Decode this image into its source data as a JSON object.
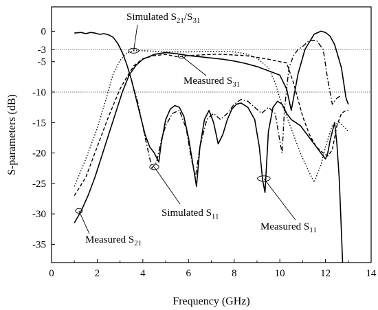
{
  "chart_data": {
    "type": "line",
    "xlabel": "Frequency (GHz)",
    "ylabel": "S-parameters (dB)",
    "xlim": [
      0,
      14
    ],
    "ylim": [
      -38,
      4
    ],
    "grid": false,
    "xticks": [
      0,
      2,
      4,
      6,
      8,
      10,
      12,
      14
    ],
    "yticks": [
      0,
      -3,
      -5,
      -10,
      -15,
      -20,
      -25,
      -30,
      -35
    ],
    "reference_lines": [
      -3,
      -10
    ],
    "series": [
      {
        "name": "Measured S21",
        "style": "solid",
        "x": [
          1.0,
          1.3,
          1.6,
          1.9,
          2.2,
          2.5,
          2.8,
          3.1,
          3.4,
          3.7,
          4.0,
          4.5,
          5.0,
          5.5,
          6.0,
          6.5,
          7.0,
          7.5,
          8.0,
          8.5,
          9.0,
          9.5,
          10.0,
          10.3,
          10.5,
          10.8,
          11.1,
          11.5,
          11.8,
          12.0,
          12.2,
          12.4,
          12.7,
          12.9,
          13.0
        ],
        "y": [
          -31.5,
          -29.5,
          -27,
          -24,
          -20.5,
          -17,
          -13.5,
          -10,
          -7.2,
          -5.6,
          -4.6,
          -3.8,
          -3.5,
          -3.7,
          -4.0,
          -4.2,
          -4.4,
          -4.6,
          -4.9,
          -5.3,
          -5.8,
          -6.5,
          -7.2,
          -9.5,
          -13.0,
          -7.0,
          -3.0,
          -0.5,
          0.0,
          -0.2,
          -0.8,
          -2.2,
          -6,
          -11,
          -12
        ]
      },
      {
        "name": "Measured S31",
        "style": "dashed",
        "x": [
          1.0,
          1.5,
          2.0,
          2.5,
          3.0,
          3.3,
          3.6,
          4.0,
          4.5,
          5.0,
          5.5,
          6.0,
          6.5,
          7.0,
          7.5,
          8.0,
          8.5,
          9.0,
          9.5,
          10.0,
          10.3,
          10.6,
          11.0,
          11.3,
          11.6,
          11.9,
          12.1,
          12.3,
          12.5,
          12.7,
          12.9,
          13.0
        ],
        "y": [
          -27.0,
          -24,
          -19,
          -14,
          -9.5,
          -7.5,
          -5.7,
          -4.5,
          -4.0,
          -3.8,
          -4.2,
          -4.0,
          -3.9,
          -3.8,
          -3.8,
          -3.9,
          -4.0,
          -4.3,
          -4.6,
          -5.0,
          -5.2,
          -8.5,
          -14.0,
          -17.0,
          -19.0,
          -20.0,
          -20.5,
          -19.5,
          -15.5,
          -13.5,
          -13.0,
          -13.0
        ]
      },
      {
        "name": "Simulated S21/S31",
        "style": "dotted",
        "x": [
          1.0,
          1.5,
          2.0,
          2.4,
          2.7,
          3.0,
          3.3,
          3.6,
          4.0,
          4.5,
          5.0,
          6.0,
          7.0,
          8.0,
          8.5,
          9.0,
          9.5,
          9.8,
          10.0,
          10.3,
          10.6,
          10.9,
          11.2,
          11.5,
          11.8,
          12.0,
          12.3,
          12.6,
          12.9,
          13.0
        ],
        "y": [
          -25.5,
          -21,
          -16,
          -11,
          -7.0,
          -4.8,
          -3.6,
          -3.2,
          -3.2,
          -3.3,
          -3.4,
          -3.4,
          -3.3,
          -3.4,
          -3.7,
          -4.4,
          -6.0,
          -8.5,
          -11.0,
          -14.0,
          -17.0,
          -20.0,
          -22.5,
          -24.8,
          -22.0,
          -19.0,
          -15.5,
          -15.0,
          -16.0,
          -16.5
        ]
      },
      {
        "name": "Measured S11",
        "style": "solid",
        "x": [
          1.0,
          1.3,
          1.5,
          1.7,
          1.9,
          2.1,
          2.3,
          2.5,
          2.7,
          2.9,
          3.1,
          3.3,
          3.5,
          3.7,
          3.9,
          4.1,
          4.3,
          4.5,
          4.7,
          4.8,
          5.0,
          5.2,
          5.4,
          5.6,
          5.8,
          6.0,
          6.2,
          6.35,
          6.5,
          6.7,
          6.9,
          7.1,
          7.3,
          7.5,
          7.7,
          7.9,
          8.1,
          8.3,
          8.6,
          8.9,
          9.1,
          9.25,
          9.35,
          9.5,
          9.7,
          9.9,
          10.1,
          10.3,
          10.5,
          10.7,
          10.9,
          11.1,
          11.3,
          11.5,
          11.7,
          11.9,
          12.0,
          12.1,
          12.2,
          12.3,
          12.4,
          12.5,
          12.6,
          12.7,
          12.75
        ],
        "y": [
          -0.3,
          -0.2,
          -0.4,
          -0.2,
          -0.3,
          -0.5,
          -0.4,
          -0.6,
          -1.0,
          -2.0,
          -3.5,
          -5.5,
          -8.0,
          -11.0,
          -14.0,
          -17.0,
          -19.0,
          -20.0,
          -21.5,
          -18.5,
          -14.5,
          -12.8,
          -12.2,
          -12.5,
          -14.0,
          -17.5,
          -22.0,
          -25.5,
          -19.0,
          -14.5,
          -13.0,
          -15.0,
          -18.5,
          -17.0,
          -14.5,
          -12.8,
          -12.0,
          -11.8,
          -12.5,
          -14.5,
          -19.0,
          -24.5,
          -26.5,
          -16.5,
          -12.5,
          -11.5,
          -12.0,
          -13.5,
          -14.5,
          -15.0,
          -15.5,
          -16.5,
          -17.5,
          -18.5,
          -19.5,
          -20.5,
          -21.0,
          -20.0,
          -18.0,
          -16.5,
          -15.0,
          -18.5,
          -24.0,
          -33.0,
          -38.0
        ]
      },
      {
        "name": "Simulated S11",
        "style": "dash-dot",
        "x": [
          3.5,
          3.8,
          4.1,
          4.4,
          4.6,
          4.8,
          5.0,
          5.3,
          5.6,
          5.9,
          6.1,
          6.3,
          6.5,
          6.8,
          7.1,
          7.4,
          7.7,
          8.0,
          8.3,
          8.6,
          8.9,
          9.2,
          9.5,
          9.8,
          10.0,
          10.1,
          10.2,
          10.4,
          10.6,
          10.8,
          11.0,
          11.3,
          11.6,
          11.9,
          12.1,
          12.3,
          12.5,
          12.7
        ],
        "y": [
          -8.0,
          -12.0,
          -17.5,
          -22.5,
          -21.5,
          -18.0,
          -15.5,
          -13.5,
          -13.0,
          -16.0,
          -20.5,
          -24.0,
          -19.0,
          -14.5,
          -13.5,
          -14.5,
          -13.5,
          -12.0,
          -11.2,
          -11.5,
          -12.5,
          -13.5,
          -12.5,
          -13.5,
          -18.0,
          -20.0,
          -13.0,
          -6.0,
          -4.0,
          -3.0,
          -2.5,
          -1.5,
          -1.5,
          -3.0,
          -8.0,
          -12.0,
          -11.0,
          -10.5
        ]
      }
    ],
    "annotations": [
      {
        "text": "Simulated S",
        "sub1": "21",
        "mid": "/S",
        "sub2": "31",
        "ellipse": [
          3.6,
          -3.2
        ],
        "ellipse_size": [
          0.22,
          0.4
        ]
      },
      {
        "text": "Measured S",
        "sub1": "31",
        "ellipse": [
          5.7,
          -4.1
        ],
        "ellipse_size": [
          0.15,
          0.35
        ]
      },
      {
        "text": "Simulated S",
        "sub1": "11",
        "ellipse": [
          4.5,
          -22.3
        ],
        "ellipse_size": [
          0.2,
          0.45
        ]
      },
      {
        "text": "Measured S",
        "sub1": "21",
        "ellipse": [
          1.2,
          -29.5
        ],
        "ellipse_size": [
          0.15,
          0.4
        ]
      },
      {
        "text": "Measured S",
        "sub1": "11",
        "ellipse": [
          9.3,
          -24.2
        ],
        "ellipse_size": [
          0.28,
          0.45
        ]
      }
    ]
  }
}
